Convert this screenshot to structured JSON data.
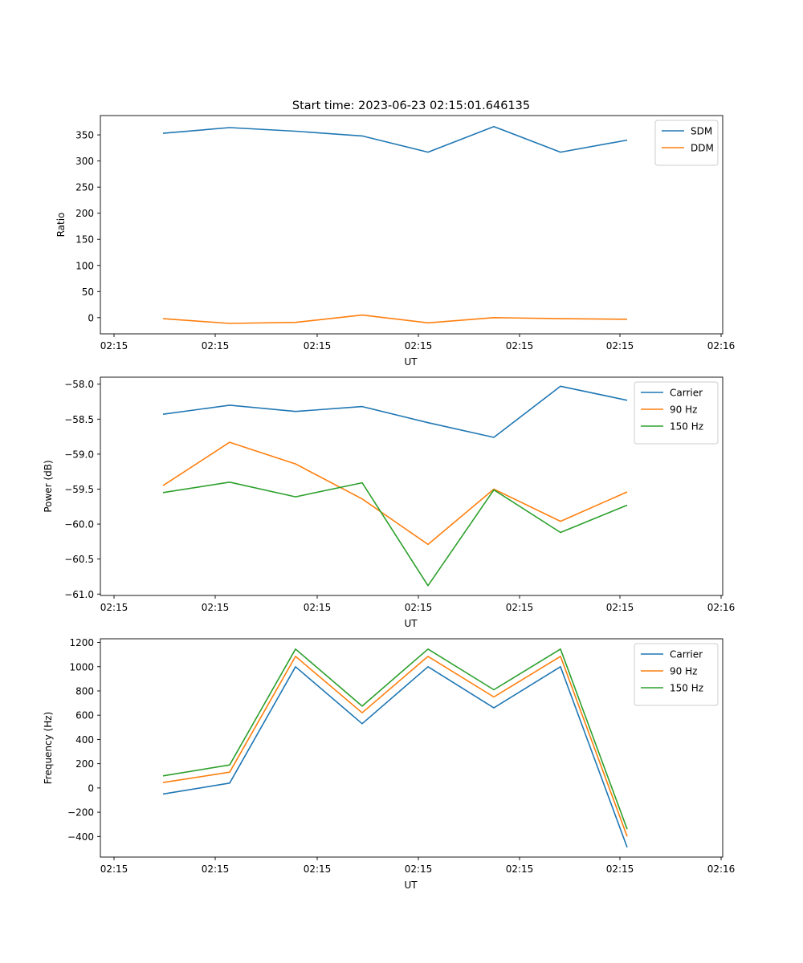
{
  "figure": {
    "title": "Start time: 2023-06-23 02:15:01.646135"
  },
  "chart_data": [
    {
      "type": "line",
      "xlabel": "UT",
      "ylabel": "Ratio",
      "x_tick_labels": [
        "02:15",
        "02:15",
        "02:15",
        "02:15",
        "02:15",
        "02:15",
        "02:16"
      ],
      "y_ticks": [
        0,
        50,
        100,
        150,
        200,
        250,
        300,
        350
      ],
      "ylim": [
        -31,
        387
      ],
      "legend_loc": "upper right",
      "series": [
        {
          "name": "SDM",
          "color": "#1f77b4",
          "values": [
            353,
            364,
            357,
            348,
            317,
            366,
            317,
            340
          ]
        },
        {
          "name": "DDM",
          "color": "#ff7f0e",
          "values": [
            -2,
            -11,
            -9,
            5,
            -10,
            0,
            -2,
            -3
          ]
        }
      ]
    },
    {
      "type": "line",
      "xlabel": "UT",
      "ylabel": "Power (dB)",
      "x_tick_labels": [
        "02:15",
        "02:15",
        "02:15",
        "02:15",
        "02:15",
        "02:15",
        "02:16"
      ],
      "y_ticks": [
        -58.0,
        -58.5,
        -59.0,
        -59.5,
        -60.0,
        -60.5,
        -61.0
      ],
      "y_tick_labels": [
        "−58.0",
        "−58.5",
        "−59.0",
        "−59.5",
        "−60.0",
        "−60.5",
        "−61.0"
      ],
      "ylim": [
        -61.02,
        -57.9
      ],
      "legend_loc": "upper right",
      "series": [
        {
          "name": "Carrier",
          "color": "#1f77b4",
          "values": [
            -58.43,
            -58.3,
            -58.39,
            -58.32,
            -58.55,
            -58.76,
            -58.03,
            -58.23
          ]
        },
        {
          "name": "90 Hz",
          "color": "#ff7f0e",
          "values": [
            -59.45,
            -58.83,
            -59.14,
            -59.64,
            -60.29,
            -59.5,
            -59.96,
            -59.54
          ]
        },
        {
          "name": "150 Hz",
          "color": "#2ca02c",
          "values": [
            -59.55,
            -59.4,
            -59.61,
            -59.41,
            -60.88,
            -59.51,
            -60.12,
            -59.73
          ]
        }
      ]
    },
    {
      "type": "line",
      "xlabel": "UT",
      "ylabel": "Frequency (Hz)",
      "x_tick_labels": [
        "02:15",
        "02:15",
        "02:15",
        "02:15",
        "02:15",
        "02:15",
        "02:16"
      ],
      "y_ticks": [
        -400,
        -200,
        0,
        200,
        400,
        600,
        800,
        1000,
        1200
      ],
      "y_tick_labels": [
        "−400",
        "−200",
        "0",
        "200",
        "400",
        "600",
        "800",
        "1000",
        "1200"
      ],
      "ylim": [
        -570,
        1230
      ],
      "legend_loc": "upper right",
      "series": [
        {
          "name": "Carrier",
          "color": "#1f77b4",
          "values": [
            -50,
            40,
            1000,
            530,
            1000,
            660,
            1000,
            -490
          ]
        },
        {
          "name": "90 Hz",
          "color": "#ff7f0e",
          "values": [
            45,
            130,
            1085,
            620,
            1085,
            750,
            1085,
            -400
          ]
        },
        {
          "name": "150 Hz",
          "color": "#2ca02c",
          "values": [
            100,
            190,
            1145,
            675,
            1145,
            810,
            1145,
            -340
          ]
        }
      ]
    }
  ]
}
